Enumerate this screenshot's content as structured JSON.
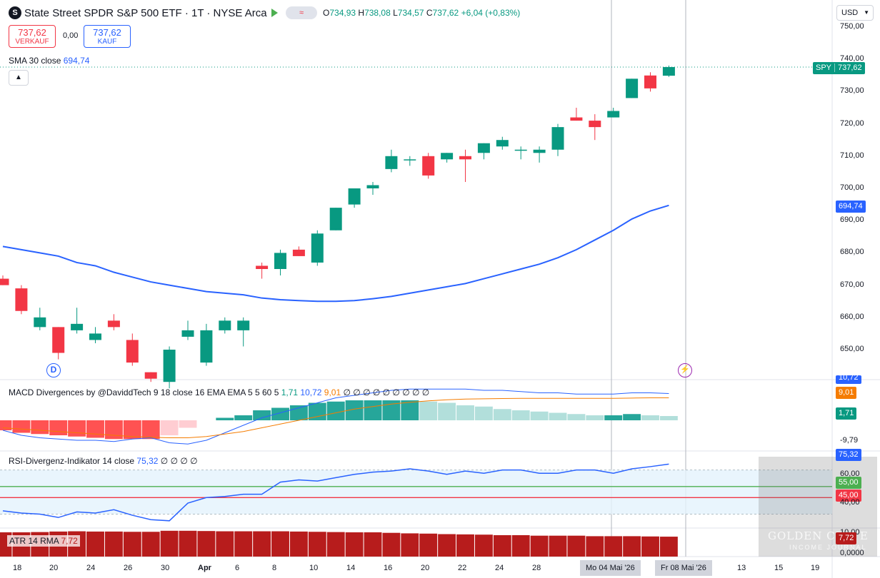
{
  "header": {
    "logo_letter": "S",
    "title": "State Street SPDR S&P 500 ETF · 1T · NYSE Arca",
    "pill_label": "≈",
    "ohlc": {
      "o_label": "O",
      "o": "734,93",
      "h_label": "H",
      "h": "738,08",
      "l_label": "L",
      "l": "734,57",
      "c_label": "C",
      "c": "737,62",
      "change": "+6,04 (+0,83%)"
    }
  },
  "trade": {
    "sell_price": "737,62",
    "sell_label": "VERKAUF",
    "spread": "0,00",
    "buy_price": "737,62",
    "buy_label": "KAUF"
  },
  "currency": "USD",
  "legends": {
    "sma": {
      "name": "SMA 30 close",
      "value": "694,74"
    },
    "macd": {
      "name": "MACD Divergences by @DaviddTech 9 18 close 16 EMA EMA 5 5 60 5",
      "v1": "1,71",
      "v2": "10,72",
      "v3": "9,01",
      "extra": "∅ ∅ ∅ ∅ ∅ ∅ ∅ ∅ ∅"
    },
    "rsi": {
      "name": "RSI-Divergenz-Indikator 14 close",
      "value": "75,32",
      "extra": "∅ ∅ ∅ ∅"
    },
    "atr": {
      "name": "ATR 14 RMA",
      "value": "7,72"
    }
  },
  "colors": {
    "up": "#089981",
    "down": "#f23645",
    "sma": "#2962ff",
    "macd_signal": "#f57c00",
    "macd_line": "#2962ff",
    "rsi_line": "#2962ff",
    "rsi_band": "#e3f2fd",
    "atr": "#b71c1c",
    "rsi_55": "#4caf50",
    "rsi_45": "#f23645"
  },
  "price_axis": {
    "ticks": [
      "750,00",
      "740,00",
      "730,00",
      "720,00",
      "710,00",
      "700,00",
      "690,00",
      "680,00",
      "670,00",
      "660,00",
      "650,00"
    ],
    "last_symbol": "SPY",
    "last_price": "737,62",
    "sma_tag": "694,74"
  },
  "macd_axis": {
    "tags": [
      "10,72",
      "9,01",
      "1,71"
    ],
    "ticks": [
      "-9,79"
    ]
  },
  "rsi_axis": {
    "tags": [
      "75,32",
      "55,00",
      "45,00"
    ],
    "ticks": [
      "60,00",
      "40,00"
    ]
  },
  "atr_axis": {
    "tags": [
      "7,72"
    ],
    "ticks": [
      "10,00",
      "0,0000"
    ]
  },
  "x_axis": {
    "labels": [
      "18",
      "20",
      "24",
      "26",
      "30",
      "Apr",
      "6",
      "8",
      "10",
      "14",
      "16",
      "20",
      "22",
      "24",
      "28",
      "13",
      "15",
      "19"
    ],
    "highlight": [
      "Mo 04 Mai '26",
      "Fr 08 Mai '26"
    ]
  },
  "markers": {
    "dividend": "D",
    "earnings": "⚡"
  },
  "watermark": {
    "line1": "GOLDEN CRATE",
    "line2": "INCOME JOURNAL"
  },
  "chart_data": {
    "type": "candlestick",
    "title": "State Street SPDR S&P 500 ETF · 1T · NYSE Arca",
    "ylim": [
      645,
      752
    ],
    "candles": [
      {
        "o": 672,
        "h": 673,
        "l": 670,
        "c": 670
      },
      {
        "o": 669,
        "h": 670,
        "l": 661,
        "c": 662
      },
      {
        "o": 657,
        "h": 663,
        "l": 656,
        "c": 660
      },
      {
        "o": 657,
        "h": 657,
        "l": 647,
        "c": 649
      },
      {
        "o": 656,
        "h": 663,
        "l": 655,
        "c": 658
      },
      {
        "o": 653,
        "h": 657,
        "l": 652,
        "c": 655
      },
      {
        "o": 659,
        "h": 661,
        "l": 656,
        "c": 657
      },
      {
        "o": 653,
        "h": 655,
        "l": 645,
        "c": 646
      },
      {
        "o": 643,
        "h": 643,
        "l": 640,
        "c": 641
      },
      {
        "o": 640,
        "h": 651,
        "l": 638,
        "c": 650
      },
      {
        "o": 654,
        "h": 659,
        "l": 653,
        "c": 656
      },
      {
        "o": 646,
        "h": 658,
        "l": 645,
        "c": 656
      },
      {
        "o": 656,
        "h": 660,
        "l": 655,
        "c": 659
      },
      {
        "o": 656,
        "h": 660,
        "l": 651,
        "c": 659
      },
      {
        "o": 676,
        "h": 677,
        "l": 672,
        "c": 675
      },
      {
        "o": 675,
        "h": 681,
        "l": 673,
        "c": 680
      },
      {
        "o": 681,
        "h": 682,
        "l": 679,
        "c": 679
      },
      {
        "o": 677,
        "h": 687,
        "l": 676,
        "c": 686
      },
      {
        "o": 687,
        "h": 694,
        "l": 687,
        "c": 694
      },
      {
        "o": 695,
        "h": 700,
        "l": 694,
        "c": 700
      },
      {
        "o": 700,
        "h": 702,
        "l": 698,
        "c": 701
      },
      {
        "o": 706,
        "h": 712,
        "l": 705,
        "c": 710
      },
      {
        "o": 709,
        "h": 710,
        "l": 707,
        "c": 709
      },
      {
        "o": 710,
        "h": 711,
        "l": 703,
        "c": 704
      },
      {
        "o": 709,
        "h": 711,
        "l": 708,
        "c": 711
      },
      {
        "o": 710,
        "h": 712,
        "l": 702,
        "c": 709
      },
      {
        "o": 711,
        "h": 714,
        "l": 709,
        "c": 714
      },
      {
        "o": 713,
        "h": 716,
        "l": 712,
        "c": 715
      },
      {
        "o": 712,
        "h": 713,
        "l": 709,
        "c": 712
      },
      {
        "o": 711,
        "h": 713,
        "l": 708,
        "c": 712
      },
      {
        "o": 712,
        "h": 720,
        "l": 710,
        "c": 719
      },
      {
        "o": 722,
        "h": 725,
        "l": 721,
        "c": 721
      },
      {
        "o": 721,
        "h": 723,
        "l": 715,
        "c": 719
      },
      {
        "o": 722,
        "h": 725,
        "l": 722,
        "c": 724
      },
      {
        "o": 728,
        "h": 734,
        "l": 728,
        "c": 734
      },
      {
        "o": 735,
        "h": 736,
        "l": 730,
        "c": 731
      },
      {
        "o": 734.93,
        "h": 738.08,
        "l": 734.57,
        "c": 737.62
      }
    ],
    "sma30": [
      682,
      681,
      680,
      679,
      677,
      676,
      674,
      672.5,
      671,
      670,
      669,
      668,
      667.5,
      667,
      666,
      665.5,
      665.2,
      665,
      665,
      665.2,
      665.8,
      666.5,
      667.5,
      668.5,
      669.5,
      670.5,
      672,
      673.5,
      675,
      676.5,
      678.5,
      681,
      684,
      687,
      690.5,
      693,
      694.74
    ],
    "macd_hist": [
      -4,
      -5,
      -5.5,
      -6,
      -6.5,
      -7,
      -7.5,
      -7.5,
      -7.5,
      -6,
      -3,
      0,
      1,
      2,
      4,
      5,
      6,
      7,
      7.5,
      8,
      8,
      8,
      8,
      7.5,
      7,
      6,
      5.5,
      4.5,
      4,
      3.5,
      3,
      2.5,
      2,
      2,
      2.5,
      2,
      1.71
    ],
    "macd_line": [
      -4,
      -6,
      -7,
      -7.5,
      -8,
      -8,
      -8.5,
      -7.5,
      -7,
      -9,
      -9.5,
      -8,
      -5,
      -2,
      1,
      3,
      5,
      7,
      9,
      10,
      11,
      12,
      12.5,
      12.5,
      12.5,
      12.5,
      12,
      12,
      11.5,
      11,
      11,
      10.5,
      10.5,
      10.5,
      11,
      11,
      10.72
    ],
    "macd_signal": [
      -3,
      -3.5,
      -4,
      -4.5,
      -5,
      -5.5,
      -6,
      -6.5,
      -6.8,
      -7,
      -7,
      -6.5,
      -5.5,
      -4.5,
      -3,
      -1.5,
      0,
      1.5,
      3,
      4.5,
      5.5,
      6.5,
      7.2,
      7.8,
      8.2,
      8.5,
      8.6,
      8.7,
      8.8,
      8.8,
      8.8,
      8.8,
      8.8,
      8.8,
      8.9,
      9,
      9.01
    ],
    "macd_ylim": [
      -10,
      14
    ],
    "rsi": [
      33,
      31,
      30,
      27,
      32,
      31,
      34,
      29,
      25,
      24,
      40,
      45,
      46,
      48,
      48,
      59,
      61,
      60,
      63,
      66,
      68,
      69,
      71,
      69,
      66,
      69,
      67,
      70,
      70,
      67,
      67,
      70,
      70,
      67,
      71,
      73,
      75.32
    ],
    "rsi_ylim": [
      20,
      82
    ],
    "rsi_levels": [
      55,
      45
    ],
    "atr": [
      9.4,
      9.4,
      9.5,
      9.7,
      9.8,
      9.7,
      9.7,
      9.6,
      9.6,
      10.0,
      10.0,
      9.9,
      9.8,
      9.8,
      9.8,
      9.8,
      9.7,
      9.6,
      9.5,
      9.4,
      9.4,
      9.2,
      9.0,
      8.9,
      8.7,
      8.6,
      8.5,
      8.3,
      8.3,
      8.1,
      8.1,
      8.1,
      7.9,
      7.9,
      7.9,
      7.8,
      7.72
    ],
    "atr_ylim": [
      0,
      10.5
    ]
  }
}
